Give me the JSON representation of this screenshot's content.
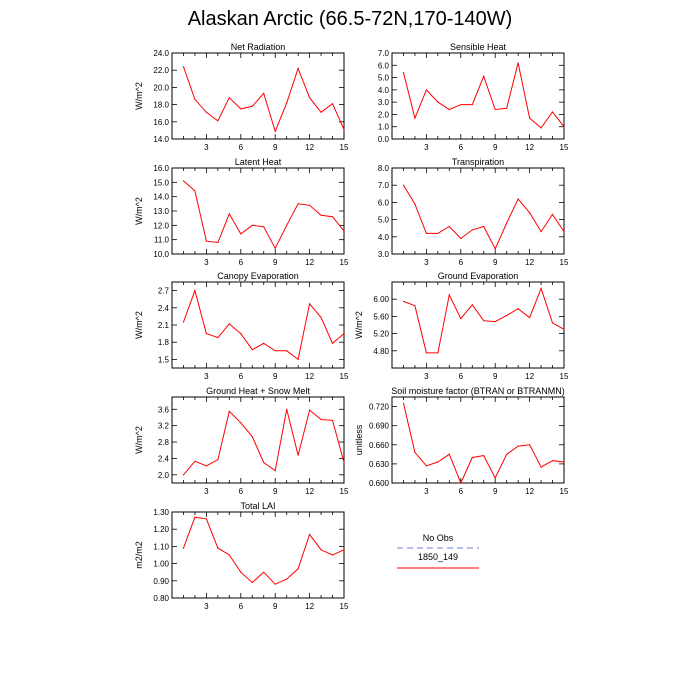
{
  "title": "Alaskan Arctic (66.5-72N,170-140W)",
  "legend": {
    "entries": [
      {
        "label": "No Obs",
        "color": "#a0a8e8",
        "style": "dashed"
      },
      {
        "label": "1850_149",
        "color": "#ff0000",
        "style": "solid"
      }
    ]
  },
  "chart_data": [
    {
      "type": "line",
      "title": "Net Radiation",
      "ylabel": "W/m^2",
      "x": [
        1,
        2,
        3,
        4,
        5,
        6,
        7,
        8,
        9,
        10,
        11,
        12,
        13,
        14,
        15
      ],
      "xticks": [
        "3",
        "6",
        "9",
        "12",
        "15"
      ],
      "xlim": [
        0,
        15
      ],
      "yticks": [
        "14.0",
        "16.0",
        "18.0",
        "20.0",
        "22.0",
        "24.0"
      ],
      "ylim": [
        14,
        24
      ],
      "series": [
        {
          "color": "#ff0000",
          "values": [
            22.4,
            18.6,
            17.1,
            16.1,
            18.8,
            17.5,
            17.8,
            19.3,
            14.9,
            18.2,
            22.2,
            18.8,
            17.1,
            18.1,
            15.1
          ]
        }
      ]
    },
    {
      "type": "line",
      "title": "Sensible Heat",
      "ylabel": "",
      "x": [
        1,
        2,
        3,
        4,
        5,
        6,
        7,
        8,
        9,
        10,
        11,
        12,
        13,
        14,
        15
      ],
      "xticks": [
        "3",
        "6",
        "9",
        "12",
        "15"
      ],
      "xlim": [
        0,
        15
      ],
      "yticks": [
        "0.0",
        "1.0",
        "2.0",
        "3.0",
        "4.0",
        "5.0",
        "6.0",
        "7.0"
      ],
      "ylim": [
        0,
        7
      ],
      "series": [
        {
          "color": "#ff0000",
          "values": [
            5.4,
            1.7,
            4.0,
            3.0,
            2.4,
            2.8,
            2.8,
            5.1,
            2.4,
            2.5,
            6.2,
            1.7,
            0.9,
            2.2,
            1.0
          ]
        }
      ]
    },
    {
      "type": "line",
      "title": "Latent Heat",
      "ylabel": "W/m^2",
      "x": [
        1,
        2,
        3,
        4,
        5,
        6,
        7,
        8,
        9,
        10,
        11,
        12,
        13,
        14,
        15
      ],
      "xticks": [
        "3",
        "6",
        "9",
        "12",
        "15"
      ],
      "xlim": [
        0,
        15
      ],
      "yticks": [
        "10.0",
        "11.0",
        "12.0",
        "13.0",
        "14.0",
        "15.0",
        "16.0"
      ],
      "ylim": [
        10,
        16
      ],
      "series": [
        {
          "color": "#ff0000",
          "values": [
            15.1,
            14.4,
            10.9,
            10.8,
            12.8,
            11.4,
            12.0,
            11.9,
            10.4,
            12.0,
            13.5,
            13.4,
            12.7,
            12.6,
            11.6
          ]
        }
      ]
    },
    {
      "type": "line",
      "title": "Transpiration",
      "ylabel": "",
      "x": [
        1,
        2,
        3,
        4,
        5,
        6,
        7,
        8,
        9,
        10,
        11,
        12,
        13,
        14,
        15
      ],
      "xticks": [
        "3",
        "6",
        "9",
        "12",
        "15"
      ],
      "xlim": [
        0,
        15
      ],
      "yticks": [
        "3.0",
        "4.0",
        "5.0",
        "6.0",
        "7.0",
        "8.0"
      ],
      "ylim": [
        3,
        8
      ],
      "series": [
        {
          "color": "#ff0000",
          "values": [
            7.0,
            5.9,
            4.2,
            4.2,
            4.6,
            3.9,
            4.4,
            4.6,
            3.3,
            4.8,
            6.2,
            5.4,
            4.3,
            5.3,
            4.3
          ]
        }
      ]
    },
    {
      "type": "line",
      "title": "Canopy Evaporation",
      "ylabel": "W/m^2",
      "x": [
        1,
        2,
        3,
        4,
        5,
        6,
        7,
        8,
        9,
        10,
        11,
        12,
        13,
        14,
        15
      ],
      "xticks": [
        "3",
        "6",
        "9",
        "12",
        "15"
      ],
      "xlim": [
        0,
        15
      ],
      "yticks": [
        "1.5",
        "1.8",
        "2.1",
        "2.4",
        "2.7"
      ],
      "ylim": [
        1.35,
        2.85
      ],
      "series": [
        {
          "color": "#ff0000",
          "values": [
            2.15,
            2.7,
            1.95,
            1.88,
            2.12,
            1.95,
            1.67,
            1.78,
            1.65,
            1.65,
            1.5,
            2.47,
            2.23,
            1.78,
            1.95
          ]
        }
      ]
    },
    {
      "type": "line",
      "title": "Ground Evaporation",
      "ylabel": "W/m^2",
      "x": [
        1,
        2,
        3,
        4,
        5,
        6,
        7,
        8,
        9,
        10,
        11,
        12,
        13,
        14,
        15
      ],
      "xticks": [
        "3",
        "6",
        "9",
        "12",
        "15"
      ],
      "xlim": [
        0,
        15
      ],
      "yticks": [
        "4.80",
        "5.20",
        "5.60",
        "6.00"
      ],
      "ylim": [
        4.4,
        6.4
      ],
      "series": [
        {
          "color": "#ff0000",
          "values": [
            5.95,
            5.85,
            4.75,
            4.75,
            6.1,
            5.55,
            5.87,
            5.5,
            5.48,
            5.62,
            5.78,
            5.57,
            6.25,
            5.45,
            5.3
          ]
        }
      ]
    },
    {
      "type": "line",
      "title": "Ground Heat + Snow Melt",
      "ylabel": "W/m^2",
      "x": [
        1,
        2,
        3,
        4,
        5,
        6,
        7,
        8,
        9,
        10,
        11,
        12,
        13,
        14,
        15
      ],
      "xticks": [
        "3",
        "6",
        "9",
        "12",
        "15"
      ],
      "xlim": [
        0,
        15
      ],
      "yticks": [
        "2.0",
        "2.4",
        "2.8",
        "3.2",
        "3.6"
      ],
      "ylim": [
        1.8,
        3.9
      ],
      "series": [
        {
          "color": "#ff0000",
          "values": [
            2.0,
            2.33,
            2.22,
            2.37,
            3.55,
            3.27,
            2.93,
            2.3,
            2.1,
            3.6,
            2.48,
            3.58,
            3.35,
            3.33,
            2.3
          ]
        }
      ]
    },
    {
      "type": "line",
      "title": "Soil moisture factor (BTRAN or BTRANMN)",
      "ylabel": "unitless",
      "x": [
        1,
        2,
        3,
        4,
        5,
        6,
        7,
        8,
        9,
        10,
        11,
        12,
        13,
        14,
        15
      ],
      "xticks": [
        "3",
        "6",
        "9",
        "12",
        "15"
      ],
      "xlim": [
        0,
        15
      ],
      "yticks": [
        "0.600",
        "0.630",
        "0.660",
        "0.690",
        "0.720"
      ],
      "ylim": [
        0.6,
        0.735
      ],
      "series": [
        {
          "color": "#ff0000",
          "values": [
            0.725,
            0.648,
            0.627,
            0.633,
            0.645,
            0.6,
            0.64,
            0.643,
            0.608,
            0.645,
            0.658,
            0.66,
            0.625,
            0.635,
            0.633
          ]
        }
      ]
    },
    {
      "type": "line",
      "title": "Total LAI",
      "ylabel": "m2/m2",
      "x": [
        1,
        2,
        3,
        4,
        5,
        6,
        7,
        8,
        9,
        10,
        11,
        12,
        13,
        14,
        15
      ],
      "xticks": [
        "3",
        "6",
        "9",
        "12",
        "15"
      ],
      "xlim": [
        0,
        15
      ],
      "yticks": [
        "0.80",
        "0.90",
        "1.00",
        "1.10",
        "1.20",
        "1.30"
      ],
      "ylim": [
        0.8,
        1.3
      ],
      "series": [
        {
          "color": "#ff0000",
          "values": [
            1.09,
            1.27,
            1.26,
            1.09,
            1.05,
            0.95,
            0.89,
            0.95,
            0.88,
            0.91,
            0.97,
            1.17,
            1.08,
            1.05,
            1.08
          ]
        }
      ]
    }
  ]
}
